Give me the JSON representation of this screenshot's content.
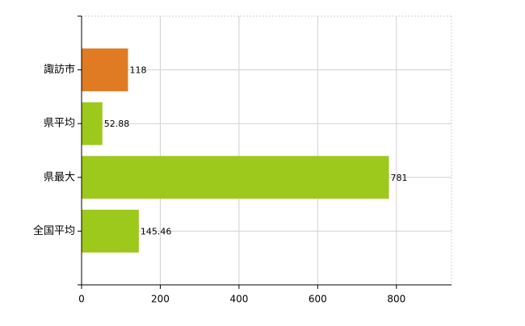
{
  "chart_data": {
    "type": "hbar",
    "categories": [
      "諏訪市",
      "県平均",
      "県最大",
      "全国平均"
    ],
    "values": [
      118,
      52.88,
      781,
      145.46
    ],
    "colors": [
      "#e07b24",
      "#9dc81c",
      "#9dc81c",
      "#9dc81c"
    ],
    "xlim": [
      0,
      940
    ],
    "xticks": [
      0,
      200,
      400,
      600,
      800
    ],
    "grid": true
  }
}
